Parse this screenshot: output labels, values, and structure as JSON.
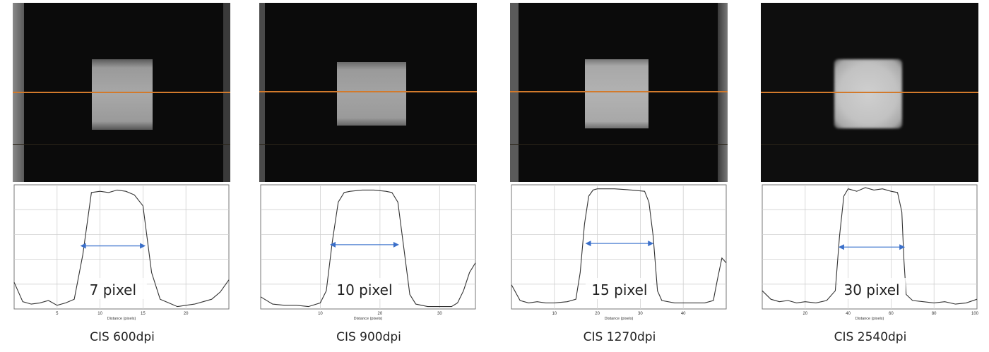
{
  "chart_data": [
    {
      "type": "line",
      "caption": "CIS 600dpi",
      "annotation": "7 pixel",
      "xlabel": "Distance (pixels)",
      "xticks": [
        5,
        10,
        15,
        20
      ],
      "xlim": [
        0,
        25
      ],
      "x": [
        0,
        1,
        2,
        3,
        4,
        5,
        6,
        7,
        8,
        9,
        10,
        11,
        12,
        13,
        14,
        15,
        16,
        17,
        18,
        19,
        20,
        21,
        22,
        23,
        24,
        25
      ],
      "values": [
        0.22,
        0.06,
        0.04,
        0.05,
        0.07,
        0.03,
        0.05,
        0.08,
        0.45,
        0.96,
        0.97,
        0.96,
        0.98,
        0.97,
        0.94,
        0.85,
        0.3,
        0.08,
        0.05,
        0.02,
        0.03,
        0.04,
        0.06,
        0.08,
        0.14,
        0.24
      ],
      "arrow_from": 7.7,
      "arrow_to": 15.3,
      "arrow_level": 0.52
    },
    {
      "type": "line",
      "caption": "CIS 900dpi",
      "annotation": "10 pixel",
      "xlabel": "Distance (pixels)",
      "xticks": [
        10,
        20,
        30
      ],
      "xlim": [
        0,
        36
      ],
      "x": [
        0,
        2,
        4,
        6,
        8,
        10,
        11,
        12,
        13,
        14,
        15,
        17,
        19,
        21,
        22,
        23,
        24,
        25,
        26,
        28,
        30,
        32,
        33,
        34,
        35,
        36
      ],
      "values": [
        0.1,
        0.04,
        0.03,
        0.03,
        0.02,
        0.05,
        0.15,
        0.55,
        0.88,
        0.96,
        0.97,
        0.98,
        0.98,
        0.97,
        0.96,
        0.88,
        0.5,
        0.12,
        0.04,
        0.02,
        0.02,
        0.02,
        0.05,
        0.15,
        0.3,
        0.38
      ],
      "arrow_from": 11.6,
      "arrow_to": 23.2,
      "arrow_level": 0.53
    },
    {
      "type": "line",
      "caption": "CIS 1270dpi",
      "annotation": "15 pixel",
      "xlabel": "Distance (pixels)",
      "xticks": [
        10,
        20,
        30,
        40
      ],
      "xlim": [
        0,
        50
      ],
      "x": [
        0,
        2,
        4,
        6,
        8,
        10,
        13,
        15,
        16,
        17,
        18,
        19,
        20,
        24,
        28,
        31,
        32,
        33,
        34,
        35,
        38,
        42,
        45,
        47,
        48,
        49,
        50
      ],
      "values": [
        0.2,
        0.07,
        0.05,
        0.06,
        0.05,
        0.05,
        0.06,
        0.08,
        0.3,
        0.7,
        0.93,
        0.98,
        0.99,
        0.99,
        0.98,
        0.97,
        0.88,
        0.6,
        0.15,
        0.07,
        0.05,
        0.05,
        0.05,
        0.07,
        0.25,
        0.42,
        0.38
      ],
      "arrow_from": 17.2,
      "arrow_to": 33.1,
      "arrow_level": 0.54
    },
    {
      "type": "line",
      "caption": "CIS 2540dpi",
      "annotation": "30 pixel",
      "xlabel": "Distance (pixels)",
      "xticks": [
        20,
        40,
        60,
        80,
        100
      ],
      "xlim": [
        0,
        100
      ],
      "x": [
        0,
        4,
        8,
        12,
        16,
        20,
        25,
        30,
        34,
        36,
        38,
        40,
        44,
        48,
        52,
        56,
        60,
        63,
        65,
        66,
        67,
        70,
        75,
        80,
        85,
        90,
        95,
        100
      ],
      "values": [
        0.15,
        0.08,
        0.06,
        0.07,
        0.05,
        0.06,
        0.05,
        0.07,
        0.15,
        0.6,
        0.93,
        0.99,
        0.97,
        1.0,
        0.98,
        0.99,
        0.97,
        0.96,
        0.8,
        0.4,
        0.12,
        0.07,
        0.06,
        0.05,
        0.06,
        0.04,
        0.05,
        0.08
      ],
      "arrow_from": 35.5,
      "arrow_to": 66.5,
      "arrow_level": 0.51
    }
  ]
}
